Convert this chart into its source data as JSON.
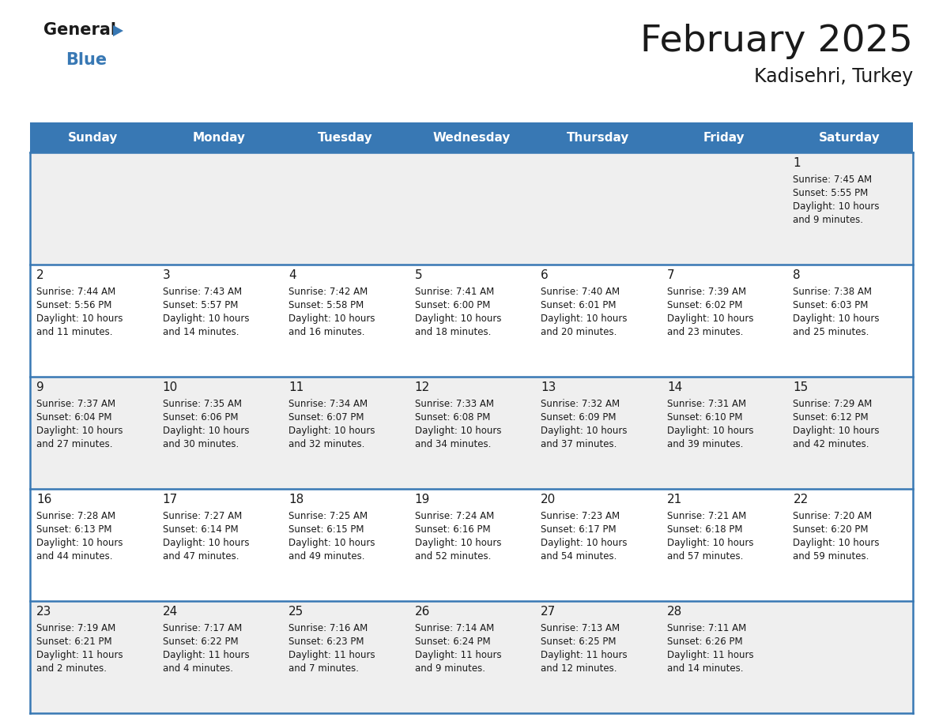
{
  "title": "February 2025",
  "subtitle": "Kadisehri, Turkey",
  "header_color": "#3878b4",
  "header_text_color": "#ffffff",
  "day_names": [
    "Sunday",
    "Monday",
    "Tuesday",
    "Wednesday",
    "Thursday",
    "Friday",
    "Saturday"
  ],
  "cell_bg_odd": "#efefef",
  "cell_bg_even": "#ffffff",
  "border_color": "#3878b4",
  "title_color": "#1a1a1a",
  "subtitle_color": "#1a1a1a",
  "day_num_color": "#1a1a1a",
  "cell_text_color": "#1a1a1a",
  "logo_black": "#1a1a1a",
  "logo_blue": "#3878b4",
  "days": [
    {
      "day": 1,
      "col": 6,
      "row": 0,
      "sunrise": "7:45 AM",
      "sunset": "5:55 PM",
      "daylight_line1": "Daylight: 10 hours",
      "daylight_line2": "and 9 minutes."
    },
    {
      "day": 2,
      "col": 0,
      "row": 1,
      "sunrise": "7:44 AM",
      "sunset": "5:56 PM",
      "daylight_line1": "Daylight: 10 hours",
      "daylight_line2": "and 11 minutes."
    },
    {
      "day": 3,
      "col": 1,
      "row": 1,
      "sunrise": "7:43 AM",
      "sunset": "5:57 PM",
      "daylight_line1": "Daylight: 10 hours",
      "daylight_line2": "and 14 minutes."
    },
    {
      "day": 4,
      "col": 2,
      "row": 1,
      "sunrise": "7:42 AM",
      "sunset": "5:58 PM",
      "daylight_line1": "Daylight: 10 hours",
      "daylight_line2": "and 16 minutes."
    },
    {
      "day": 5,
      "col": 3,
      "row": 1,
      "sunrise": "7:41 AM",
      "sunset": "6:00 PM",
      "daylight_line1": "Daylight: 10 hours",
      "daylight_line2": "and 18 minutes."
    },
    {
      "day": 6,
      "col": 4,
      "row": 1,
      "sunrise": "7:40 AM",
      "sunset": "6:01 PM",
      "daylight_line1": "Daylight: 10 hours",
      "daylight_line2": "and 20 minutes."
    },
    {
      "day": 7,
      "col": 5,
      "row": 1,
      "sunrise": "7:39 AM",
      "sunset": "6:02 PM",
      "daylight_line1": "Daylight: 10 hours",
      "daylight_line2": "and 23 minutes."
    },
    {
      "day": 8,
      "col": 6,
      "row": 1,
      "sunrise": "7:38 AM",
      "sunset": "6:03 PM",
      "daylight_line1": "Daylight: 10 hours",
      "daylight_line2": "and 25 minutes."
    },
    {
      "day": 9,
      "col": 0,
      "row": 2,
      "sunrise": "7:37 AM",
      "sunset": "6:04 PM",
      "daylight_line1": "Daylight: 10 hours",
      "daylight_line2": "and 27 minutes."
    },
    {
      "day": 10,
      "col": 1,
      "row": 2,
      "sunrise": "7:35 AM",
      "sunset": "6:06 PM",
      "daylight_line1": "Daylight: 10 hours",
      "daylight_line2": "and 30 minutes."
    },
    {
      "day": 11,
      "col": 2,
      "row": 2,
      "sunrise": "7:34 AM",
      "sunset": "6:07 PM",
      "daylight_line1": "Daylight: 10 hours",
      "daylight_line2": "and 32 minutes."
    },
    {
      "day": 12,
      "col": 3,
      "row": 2,
      "sunrise": "7:33 AM",
      "sunset": "6:08 PM",
      "daylight_line1": "Daylight: 10 hours",
      "daylight_line2": "and 34 minutes."
    },
    {
      "day": 13,
      "col": 4,
      "row": 2,
      "sunrise": "7:32 AM",
      "sunset": "6:09 PM",
      "daylight_line1": "Daylight: 10 hours",
      "daylight_line2": "and 37 minutes."
    },
    {
      "day": 14,
      "col": 5,
      "row": 2,
      "sunrise": "7:31 AM",
      "sunset": "6:10 PM",
      "daylight_line1": "Daylight: 10 hours",
      "daylight_line2": "and 39 minutes."
    },
    {
      "day": 15,
      "col": 6,
      "row": 2,
      "sunrise": "7:29 AM",
      "sunset": "6:12 PM",
      "daylight_line1": "Daylight: 10 hours",
      "daylight_line2": "and 42 minutes."
    },
    {
      "day": 16,
      "col": 0,
      "row": 3,
      "sunrise": "7:28 AM",
      "sunset": "6:13 PM",
      "daylight_line1": "Daylight: 10 hours",
      "daylight_line2": "and 44 minutes."
    },
    {
      "day": 17,
      "col": 1,
      "row": 3,
      "sunrise": "7:27 AM",
      "sunset": "6:14 PM",
      "daylight_line1": "Daylight: 10 hours",
      "daylight_line2": "and 47 minutes."
    },
    {
      "day": 18,
      "col": 2,
      "row": 3,
      "sunrise": "7:25 AM",
      "sunset": "6:15 PM",
      "daylight_line1": "Daylight: 10 hours",
      "daylight_line2": "and 49 minutes."
    },
    {
      "day": 19,
      "col": 3,
      "row": 3,
      "sunrise": "7:24 AM",
      "sunset": "6:16 PM",
      "daylight_line1": "Daylight: 10 hours",
      "daylight_line2": "and 52 minutes."
    },
    {
      "day": 20,
      "col": 4,
      "row": 3,
      "sunrise": "7:23 AM",
      "sunset": "6:17 PM",
      "daylight_line1": "Daylight: 10 hours",
      "daylight_line2": "and 54 minutes."
    },
    {
      "day": 21,
      "col": 5,
      "row": 3,
      "sunrise": "7:21 AM",
      "sunset": "6:18 PM",
      "daylight_line1": "Daylight: 10 hours",
      "daylight_line2": "and 57 minutes."
    },
    {
      "day": 22,
      "col": 6,
      "row": 3,
      "sunrise": "7:20 AM",
      "sunset": "6:20 PM",
      "daylight_line1": "Daylight: 10 hours",
      "daylight_line2": "and 59 minutes."
    },
    {
      "day": 23,
      "col": 0,
      "row": 4,
      "sunrise": "7:19 AM",
      "sunset": "6:21 PM",
      "daylight_line1": "Daylight: 11 hours",
      "daylight_line2": "and 2 minutes."
    },
    {
      "day": 24,
      "col": 1,
      "row": 4,
      "sunrise": "7:17 AM",
      "sunset": "6:22 PM",
      "daylight_line1": "Daylight: 11 hours",
      "daylight_line2": "and 4 minutes."
    },
    {
      "day": 25,
      "col": 2,
      "row": 4,
      "sunrise": "7:16 AM",
      "sunset": "6:23 PM",
      "daylight_line1": "Daylight: 11 hours",
      "daylight_line2": "and 7 minutes."
    },
    {
      "day": 26,
      "col": 3,
      "row": 4,
      "sunrise": "7:14 AM",
      "sunset": "6:24 PM",
      "daylight_line1": "Daylight: 11 hours",
      "daylight_line2": "and 9 minutes."
    },
    {
      "day": 27,
      "col": 4,
      "row": 4,
      "sunrise": "7:13 AM",
      "sunset": "6:25 PM",
      "daylight_line1": "Daylight: 11 hours",
      "daylight_line2": "and 12 minutes."
    },
    {
      "day": 28,
      "col": 5,
      "row": 4,
      "sunrise": "7:11 AM",
      "sunset": "6:26 PM",
      "daylight_line1": "Daylight: 11 hours",
      "daylight_line2": "and 14 minutes."
    }
  ]
}
